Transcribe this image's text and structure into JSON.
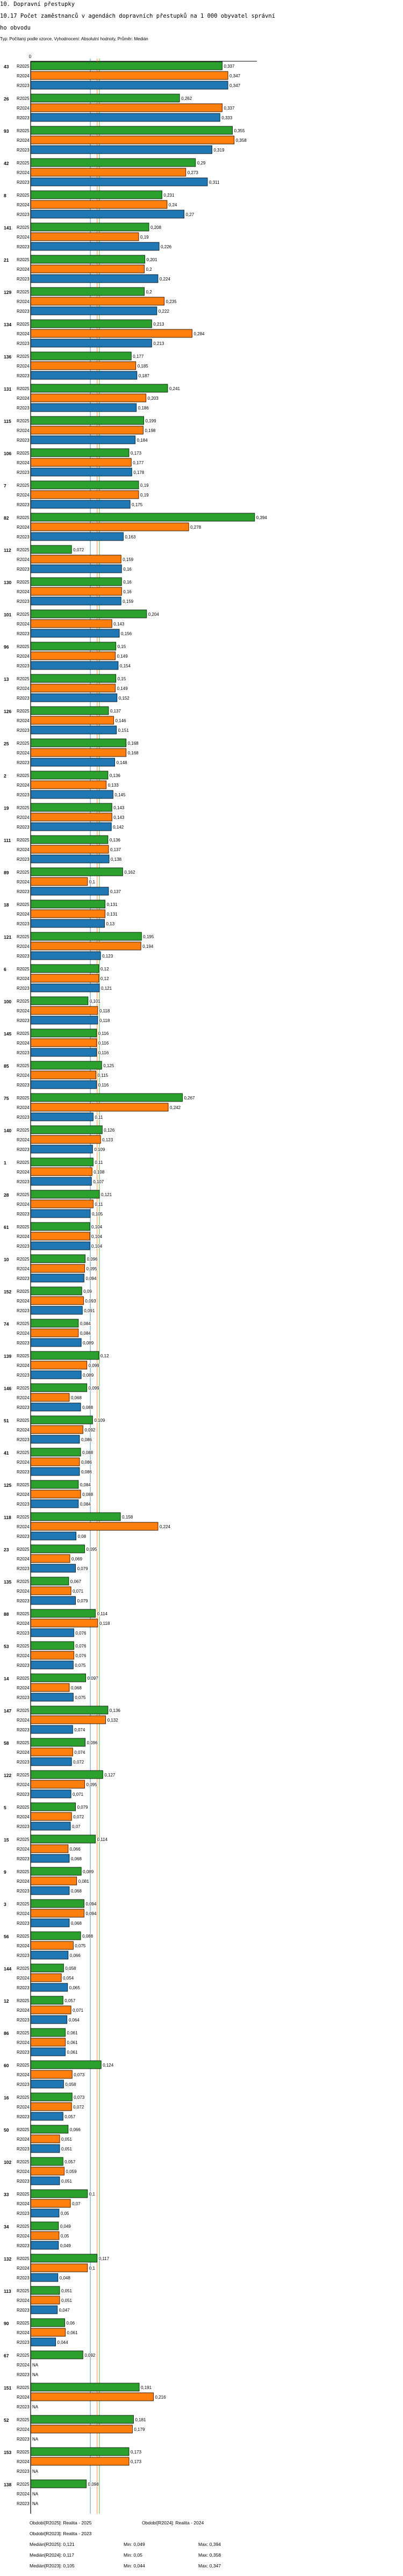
{
  "header": {
    "section": "10. Dopravní přestupky",
    "title_line1": "10.17 Počet zaměstnanců v agendách dopravních přestupků na 1 000 obyvatel správní",
    "title_line2": "ho obvodu",
    "subtitle": "Typ: Počítaný podle vzorce, Vyhodnocení: Absolutní hodnoty, Průměr: Medián"
  },
  "chart_data": {
    "type": "bar",
    "orientation": "horizontal",
    "axis_zero_label": "0",
    "na_label": "NA",
    "xlim": [
      0,
      0.4
    ],
    "series_names": [
      "R2025",
      "R2024",
      "R2023"
    ],
    "colors": {
      "R2025": "#2ca02c",
      "R2024": "#ff7f0e",
      "R2023": "#1f77b4"
    },
    "medians": {
      "R2025": 0.121,
      "R2024": 0.117,
      "R2023": 0.105
    },
    "categories": [
      "43",
      "26",
      "93",
      "42",
      "8",
      "141",
      "21",
      "129",
      "134",
      "136",
      "131",
      "115",
      "106",
      "7",
      "82",
      "112",
      "130",
      "101",
      "96",
      "13",
      "126",
      "25",
      "2",
      "19",
      "111",
      "89",
      "18",
      "121",
      "6",
      "100",
      "145",
      "85",
      "75",
      "140",
      "1",
      "28",
      "61",
      "10",
      "152",
      "74",
      "139",
      "146",
      "51",
      "41",
      "125",
      "118",
      "23",
      "135",
      "88",
      "53",
      "14",
      "147",
      "58",
      "122",
      "5",
      "15",
      "9",
      "3",
      "56",
      "144",
      "12",
      "86",
      "60",
      "16",
      "50",
      "102",
      "33",
      "34",
      "132",
      "113",
      "90",
      "67",
      "151",
      "52",
      "153",
      "138"
    ],
    "series": [
      {
        "name": "R2025",
        "values": [
          0.337,
          0.262,
          0.355,
          0.29,
          0.231,
          0.208,
          0.201,
          0.2,
          0.213,
          0.177,
          0.241,
          0.199,
          0.173,
          0.19,
          0.394,
          0.072,
          0.16,
          0.204,
          0.15,
          0.15,
          0.137,
          0.168,
          0.136,
          0.143,
          0.136,
          0.162,
          0.131,
          0.195,
          0.12,
          0.101,
          0.116,
          0.125,
          0.267,
          0.126,
          0.11,
          0.121,
          0.104,
          0.096,
          0.09,
          0.084,
          0.12,
          0.099,
          0.109,
          0.088,
          0.084,
          0.158,
          0.095,
          0.067,
          0.114,
          0.076,
          0.097,
          0.136,
          0.096,
          0.127,
          0.079,
          0.114,
          0.089,
          0.094,
          0.088,
          0.058,
          0.057,
          0.061,
          0.124,
          0.073,
          0.066,
          0.057,
          0.1,
          0.049,
          0.117,
          0.051,
          0.06,
          0.092,
          0.191,
          0.181,
          0.173,
          0.098
        ]
      },
      {
        "name": "R2024",
        "values": [
          0.347,
          0.337,
          0.358,
          0.273,
          0.24,
          0.19,
          0.2,
          0.235,
          0.284,
          0.185,
          0.203,
          0.198,
          0.177,
          0.19,
          0.278,
          0.159,
          0.16,
          0.143,
          0.149,
          0.149,
          0.146,
          0.168,
          0.133,
          0.143,
          0.137,
          0.1,
          0.131,
          0.194,
          0.12,
          0.118,
          0.116,
          0.115,
          0.242,
          0.123,
          0.108,
          0.11,
          0.104,
          0.095,
          0.093,
          0.084,
          0.099,
          0.068,
          0.092,
          0.086,
          0.088,
          0.224,
          0.069,
          0.071,
          0.118,
          0.076,
          0.068,
          0.132,
          0.074,
          0.095,
          0.072,
          0.066,
          0.081,
          0.094,
          0.075,
          0.054,
          0.071,
          0.061,
          0.073,
          0.072,
          0.051,
          0.059,
          0.07,
          0.05,
          0.1,
          0.051,
          0.061,
          null,
          0.216,
          0.179,
          0.173,
          null
        ]
      },
      {
        "name": "R2023",
        "values": [
          0.347,
          0.333,
          0.319,
          0.311,
          0.27,
          0.226,
          0.224,
          0.222,
          0.213,
          0.187,
          0.186,
          0.184,
          0.178,
          0.175,
          0.163,
          0.16,
          0.159,
          0.156,
          0.154,
          0.152,
          0.151,
          0.148,
          0.145,
          0.142,
          0.138,
          0.137,
          0.13,
          0.123,
          0.121,
          0.118,
          0.116,
          0.116,
          0.11,
          0.109,
          0.107,
          0.105,
          0.104,
          0.094,
          0.091,
          0.089,
          0.089,
          0.088,
          0.086,
          0.086,
          0.084,
          0.08,
          0.079,
          0.079,
          0.076,
          0.075,
          0.075,
          0.074,
          0.072,
          0.071,
          0.07,
          0.068,
          0.068,
          0.068,
          0.066,
          0.065,
          0.064,
          0.061,
          0.058,
          0.057,
          0.051,
          0.051,
          0.05,
          0.049,
          0.048,
          0.047,
          0.044,
          null,
          null,
          null,
          null,
          null
        ]
      }
    ]
  },
  "legend": {
    "period_2025": "Období[R2025]: Realita - 2025",
    "period_2024": "Období[R2024]: Realita - 2024",
    "period_2023": "Období[R2023]: Realita - 2023",
    "median_2025": "Medián[R2025]: 0,121",
    "median_2024": "Medián[R2024]: 0,117",
    "median_2023": "Medián[R2023]: 0,105",
    "min_2025": "Min: 0,049",
    "min_2024": "Min: 0,05",
    "min_2023": "Min: 0,044",
    "max_2025": "Max: 0,394",
    "max_2024": "Max: 0,358",
    "max_2023": "Max: 0,347"
  }
}
